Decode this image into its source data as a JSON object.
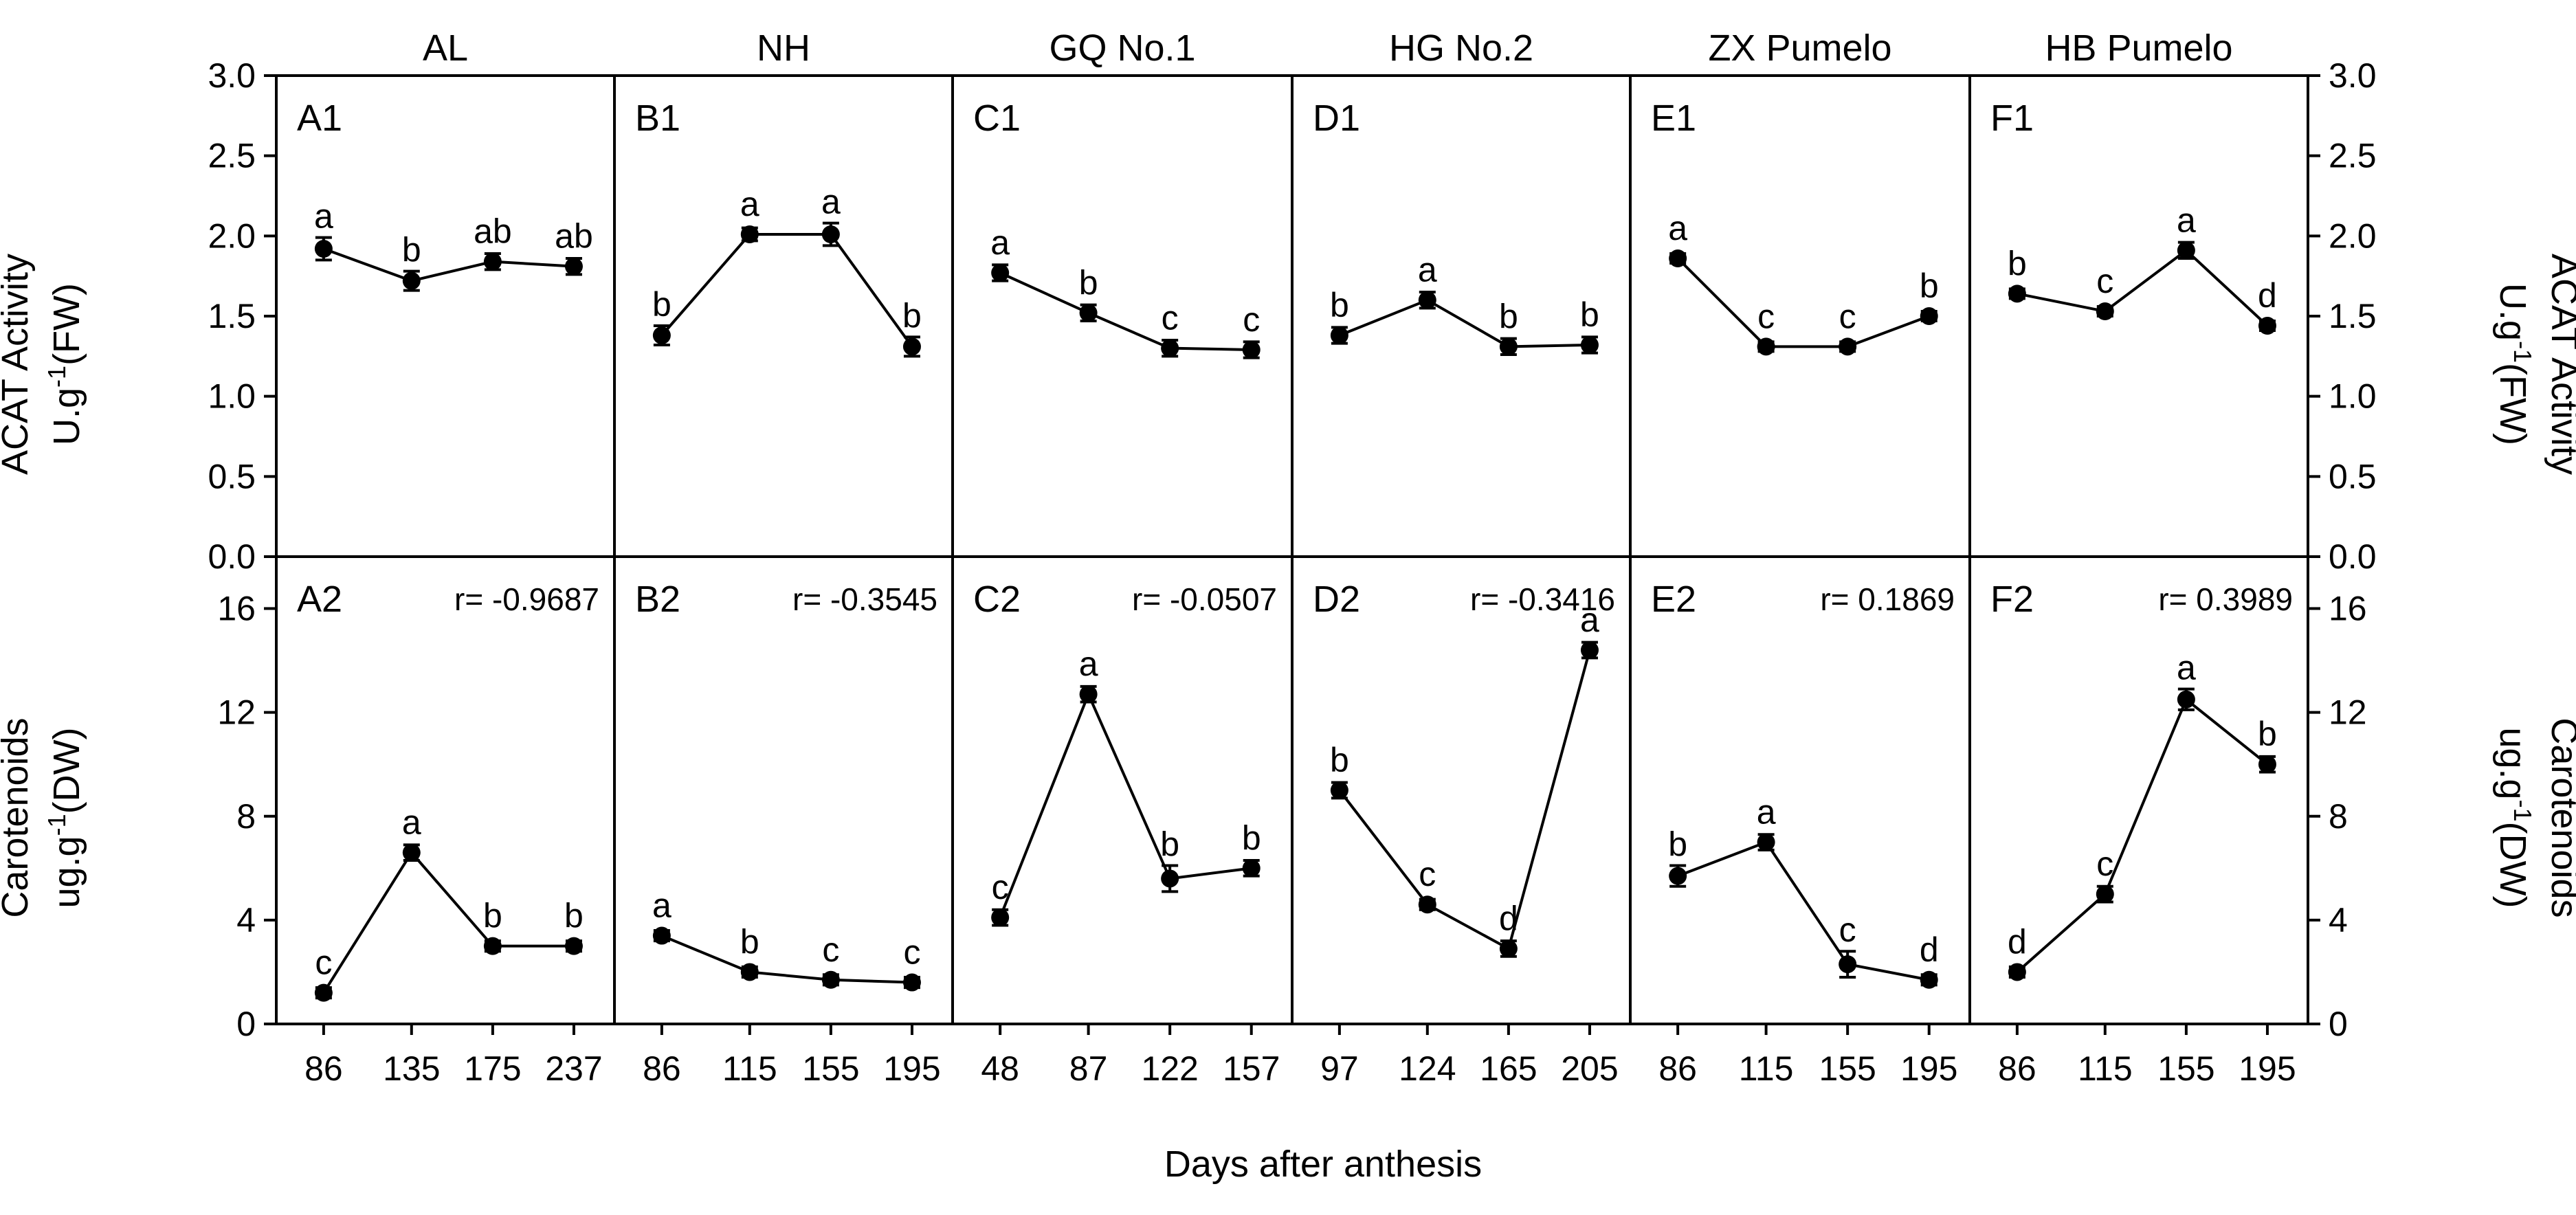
{
  "figure": {
    "xlabel": "Days after anthesis",
    "ylabel_top": {
      "line1": "ACAT Activity",
      "line2_pre": "U.g",
      "line2_sup": "-1",
      "line2_post": "(FW)"
    },
    "ylabel_bottom": {
      "line1": "Carotenoids",
      "line2_pre": "ug.g",
      "line2_sup": "-1",
      "line2_post": "(DW)"
    }
  },
  "chart_data": [
    {
      "type": "line",
      "group": "ACAT activity",
      "title": "AL",
      "panel": "A1",
      "ylim": [
        0,
        3
      ],
      "categories": [
        "86",
        "135",
        "175",
        "237"
      ],
      "values": [
        1.92,
        1.72,
        1.84,
        1.81
      ],
      "errors": [
        0.07,
        0.06,
        0.05,
        0.05
      ],
      "letters": [
        "a",
        "b",
        "ab",
        "ab"
      ]
    },
    {
      "type": "line",
      "group": "ACAT activity",
      "title": "NH",
      "panel": "B1",
      "ylim": [
        0,
        3
      ],
      "categories": [
        "86",
        "115",
        "155",
        "195"
      ],
      "values": [
        1.38,
        2.01,
        2.01,
        1.31
      ],
      "errors": [
        0.06,
        0.04,
        0.07,
        0.06
      ],
      "letters": [
        "b",
        "a",
        "a",
        "b"
      ]
    },
    {
      "type": "line",
      "group": "ACAT activity",
      "title": "GQ No.1",
      "panel": "C1",
      "ylim": [
        0,
        3
      ],
      "categories": [
        "48",
        "87",
        "122",
        "157"
      ],
      "values": [
        1.77,
        1.52,
        1.3,
        1.29
      ],
      "errors": [
        0.05,
        0.05,
        0.05,
        0.05
      ],
      "letters": [
        "a",
        "b",
        "c",
        "c"
      ]
    },
    {
      "type": "line",
      "group": "ACAT activity",
      "title": "HG No.2",
      "panel": "D1",
      "ylim": [
        0,
        3
      ],
      "categories": [
        "97",
        "124",
        "165",
        "205"
      ],
      "values": [
        1.38,
        1.6,
        1.31,
        1.32
      ],
      "errors": [
        0.05,
        0.05,
        0.05,
        0.05
      ],
      "letters": [
        "b",
        "a",
        "b",
        "b"
      ]
    },
    {
      "type": "line",
      "group": "ACAT activity",
      "title": "ZX Pumelo",
      "panel": "E1",
      "ylim": [
        0,
        3
      ],
      "categories": [
        "86",
        "115",
        "155",
        "195"
      ],
      "values": [
        1.86,
        1.31,
        1.31,
        1.5
      ],
      "errors": [
        0.03,
        0.03,
        0.03,
        0.03
      ],
      "letters": [
        "a",
        "c",
        "c",
        "b"
      ]
    },
    {
      "type": "line",
      "group": "ACAT activity",
      "title": "HB Pumelo",
      "panel": "F1",
      "ylim": [
        0,
        3
      ],
      "categories": [
        "86",
        "115",
        "155",
        "195"
      ],
      "values": [
        1.64,
        1.53,
        1.91,
        1.44
      ],
      "errors": [
        0.03,
        0.03,
        0.05,
        0.03
      ],
      "letters": [
        "b",
        "c",
        "a",
        "d"
      ]
    },
    {
      "type": "line",
      "group": "Carotenoids",
      "title": "AL",
      "panel": "A2",
      "r": "r= -0.9687",
      "ylim": [
        0,
        18
      ],
      "categories": [
        "86",
        "135",
        "175",
        "237"
      ],
      "values": [
        1.2,
        6.6,
        3.0,
        3.0
      ],
      "errors": [
        0.2,
        0.3,
        0.2,
        0.2
      ],
      "letters": [
        "c",
        "a",
        "b",
        "b"
      ]
    },
    {
      "type": "line",
      "group": "Carotenoids",
      "title": "NH",
      "panel": "B2",
      "r": "r= -0.3545",
      "ylim": [
        0,
        18
      ],
      "categories": [
        "86",
        "115",
        "155",
        "195"
      ],
      "values": [
        3.4,
        2.0,
        1.7,
        1.6
      ],
      "errors": [
        0.2,
        0.2,
        0.2,
        0.2
      ],
      "letters": [
        "a",
        "b",
        "c",
        "c"
      ]
    },
    {
      "type": "line",
      "group": "Carotenoids",
      "title": "GQ No.1",
      "panel": "C2",
      "r": "r= -0.0507",
      "ylim": [
        0,
        18
      ],
      "categories": [
        "48",
        "87",
        "122",
        "157"
      ],
      "values": [
        4.1,
        12.7,
        5.6,
        6.0
      ],
      "errors": [
        0.3,
        0.3,
        0.5,
        0.3
      ],
      "letters": [
        "c",
        "a",
        "b",
        "b"
      ]
    },
    {
      "type": "line",
      "group": "Carotenoids",
      "title": "HG No.2",
      "panel": "D2",
      "r": "r= -0.3416",
      "ylim": [
        0,
        18
      ],
      "categories": [
        "97",
        "124",
        "165",
        "205"
      ],
      "values": [
        9.0,
        4.6,
        2.9,
        14.4
      ],
      "errors": [
        0.3,
        0.2,
        0.3,
        0.3
      ],
      "letters": [
        "b",
        "c",
        "d",
        "a"
      ]
    },
    {
      "type": "line",
      "group": "Carotenoids",
      "title": "ZX Pumelo",
      "panel": "E2",
      "r": "r= 0.1869",
      "ylim": [
        0,
        18
      ],
      "categories": [
        "86",
        "115",
        "155",
        "195"
      ],
      "values": [
        5.7,
        7.0,
        2.3,
        1.7
      ],
      "errors": [
        0.4,
        0.3,
        0.5,
        0.2
      ],
      "letters": [
        "b",
        "a",
        "c",
        "d"
      ]
    },
    {
      "type": "line",
      "group": "Carotenoids",
      "title": "HB Pumelo",
      "panel": "F2",
      "r": "r= 0.3989",
      "ylim": [
        0,
        18
      ],
      "categories": [
        "86",
        "115",
        "155",
        "195"
      ],
      "values": [
        2.0,
        5.0,
        12.5,
        10.0
      ],
      "errors": [
        0.2,
        0.3,
        0.4,
        0.3
      ],
      "letters": [
        "d",
        "c",
        "a",
        "b"
      ]
    }
  ],
  "axes": {
    "top_ticks": [
      "0.0",
      "0.5",
      "1.0",
      "1.5",
      "2.0",
      "2.5",
      "3.0"
    ],
    "top_tick_values": [
      0,
      0.5,
      1,
      1.5,
      2,
      2.5,
      3
    ],
    "bottom_ticks": [
      "0",
      "4",
      "8",
      "12",
      "16"
    ],
    "bottom_tick_values": [
      0,
      4,
      8,
      12,
      16
    ]
  }
}
